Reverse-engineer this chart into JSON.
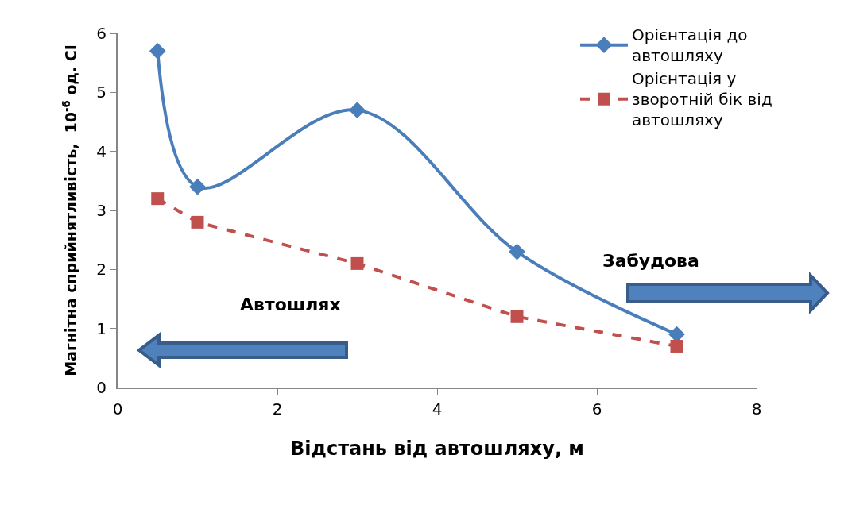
{
  "chart_data": {
    "type": "line",
    "xlabel": "Відстань від автошляху, м",
    "ylabel": "Магнітна сприйнятливість,  10$^{-6}$ од. СІ",
    "x": [
      0.5,
      1,
      3,
      5,
      7
    ],
    "series": [
      {
        "name": "Орієнтація до автошляху",
        "color": "#4a7ebb",
        "values": [
          5.7,
          3.4,
          4.7,
          2.3,
          0.9
        ],
        "marker": "diamond",
        "line_style": "solid"
      },
      {
        "name": "Орієнтація у зворотній бік від автошляху",
        "color": "#c0504d",
        "values": [
          3.2,
          2.8,
          2.1,
          1.2,
          0.7
        ],
        "marker": "square",
        "line_style": "dashed"
      }
    ],
    "xlim": [
      0,
      8
    ],
    "xticks": [
      0,
      2,
      4,
      6,
      8
    ],
    "ylim": [
      0,
      6
    ],
    "yticks": [
      0,
      1,
      2,
      3,
      4,
      5,
      6
    ],
    "legend": "top right",
    "annotations": [
      "Автошлях",
      "Забудова"
    ]
  }
}
